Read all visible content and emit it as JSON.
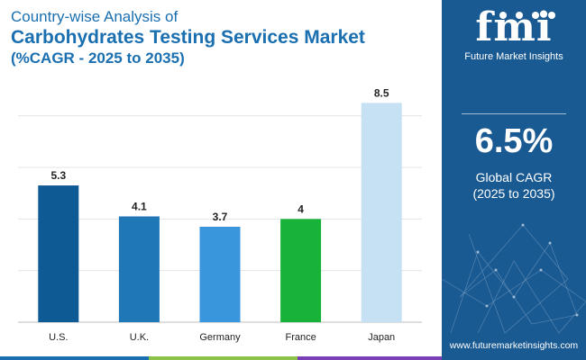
{
  "header": {
    "line1": "Country-wise Analysis of",
    "line2": "Carbohydrates Testing Services Market",
    "line3": "(%CAGR - 2025 to 2035)"
  },
  "sidebar": {
    "logo_text": "fmi",
    "logo_sub": "Future Market Insights",
    "cagr_value": "6.5%",
    "cagr_label": "Global CAGR",
    "cagr_period": "(2025 to 2035)",
    "website": "www.futuremarketinsights.com"
  },
  "colors": {
    "title": "#1a6fb0",
    "sidebar_bg": "#1a5a93",
    "bars": [
      "#0d5a94",
      "#1f77b8",
      "#3a96dc",
      "#17b23a",
      "#c6e1f4"
    ],
    "footer": [
      "#1a6fb0",
      "#8bc34a",
      "#7a3fb5"
    ]
  },
  "chart_data": {
    "type": "bar",
    "categories": [
      "U.S.",
      "U.K.",
      "Germany",
      "France",
      "Japan"
    ],
    "values": [
      5.3,
      4.1,
      3.7,
      4,
      8.5
    ],
    "value_labels": [
      "5.3",
      "4.1",
      "3.7",
      "4",
      "8.5"
    ],
    "title": "Country-wise Analysis of Carbohydrates Testing Services Market (%CAGR - 2025 to 2035)",
    "xlabel": "",
    "ylabel": "",
    "ylim": [
      0,
      9
    ],
    "grid": true,
    "legend": "none"
  }
}
